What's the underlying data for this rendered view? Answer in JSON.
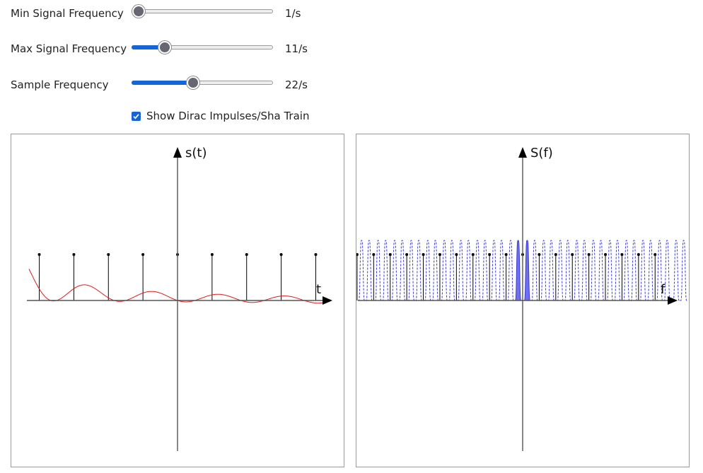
{
  "controls": {
    "min_freq": {
      "label": "Min Signal Frequency",
      "value": 1,
      "min": 1,
      "max": 50,
      "display": "1/s"
    },
    "max_freq": {
      "label": "Max Signal Frequency",
      "value": 11,
      "min": 1,
      "max": 50,
      "display": "11/s"
    },
    "sample_freq": {
      "label": "Sample Frequency",
      "value": 22,
      "min": 1,
      "max": 50,
      "display": "22/s"
    },
    "show_dirac": {
      "label": "Show Dirac Impulses/Sha Train",
      "checked": true
    }
  },
  "time_plot": {
    "ylabel": "s(t)",
    "xlabel": "t",
    "signal_color": "#e01b1b",
    "impulse_color": "#000000"
  },
  "freq_plot": {
    "ylabel": "S(f)",
    "xlabel": "f",
    "spectrum_color": "#3a3ad8",
    "fill_color": "#7070ee",
    "impulse_color": "#000000"
  }
}
